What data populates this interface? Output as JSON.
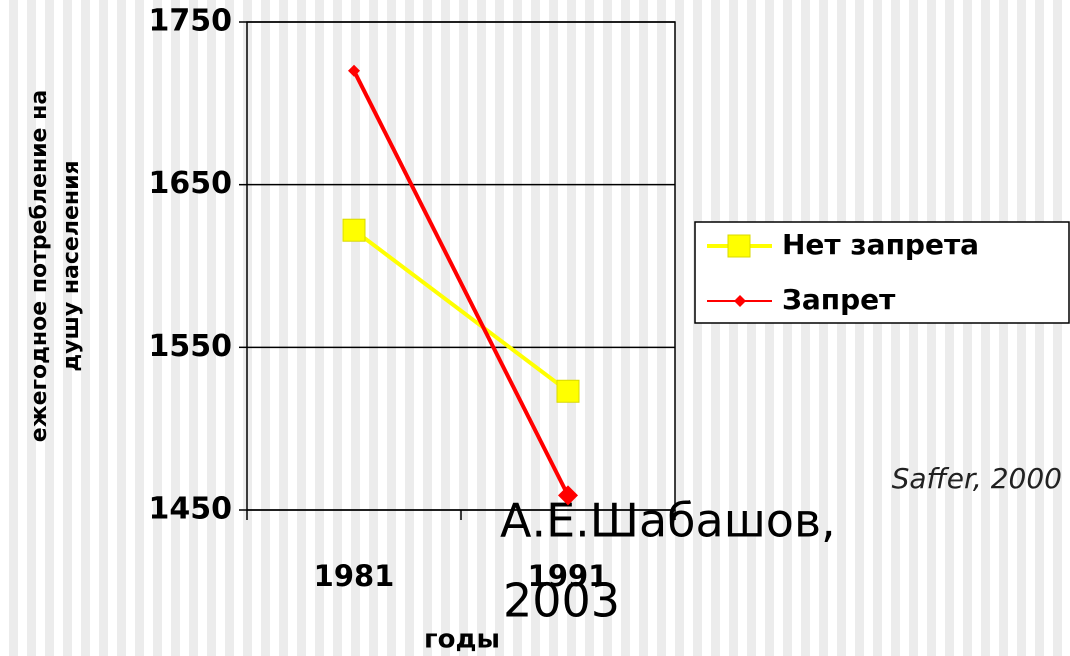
{
  "chart_data": {
    "type": "line",
    "categories": [
      "1981",
      "1991"
    ],
    "series": [
      {
        "name": "Нет запрета",
        "color": "#ffff00",
        "marker": "square",
        "values": [
          1622,
          1523
        ]
      },
      {
        "name": "Запрет",
        "color": "#ff0000",
        "marker": "diamond",
        "values": [
          1720,
          1459
        ]
      }
    ],
    "ylim": [
      1450,
      1750
    ],
    "yticks": [
      1450,
      1550,
      1650,
      1750
    ],
    "grid": true,
    "xlabel": "годы",
    "ylabel": [
      "ежегодное потребление на",
      "душу населения"
    ],
    "legend": "right",
    "annotations": [
      "Saffer, 2000",
      [
        "А.Е.Шабашов,",
        "2003"
      ]
    ]
  }
}
